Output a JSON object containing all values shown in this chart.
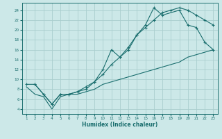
{
  "xlabel": "Humidex (Indice chaleur)",
  "background_color": "#cce8e8",
  "grid_color": "#aacece",
  "line_color": "#1a6e6e",
  "xlim": [
    0.5,
    23.5
  ],
  "ylim": [
    3,
    25.5
  ],
  "xticks": [
    1,
    2,
    3,
    4,
    5,
    6,
    7,
    8,
    9,
    10,
    11,
    12,
    13,
    14,
    15,
    16,
    17,
    18,
    19,
    20,
    21,
    22,
    23
  ],
  "yticks": [
    4,
    6,
    8,
    10,
    12,
    14,
    16,
    18,
    20,
    22,
    24
  ],
  "line1_x": [
    2,
    3,
    4,
    5,
    6,
    7,
    8,
    9,
    10,
    11,
    12,
    13,
    14,
    15,
    16,
    17,
    19,
    20,
    21,
    22,
    23
  ],
  "line1_y": [
    9,
    7,
    5,
    7,
    7,
    7.5,
    8,
    9.5,
    12,
    16,
    14.5,
    16.5,
    19,
    21,
    24.5,
    23,
    24,
    21,
    20.5,
    17.5,
    16
  ],
  "line2_x": [
    1,
    2,
    3,
    4,
    5,
    6,
    7,
    8,
    9,
    10,
    11,
    12,
    13,
    14,
    15,
    16,
    17,
    18,
    19,
    20,
    21,
    22,
    23
  ],
  "line2_y": [
    9,
    9,
    7,
    5,
    7,
    7,
    7.5,
    8.5,
    9.5,
    11,
    13,
    14.5,
    16,
    19,
    20.5,
    22,
    23.5,
    24,
    24.5,
    24,
    23,
    22,
    21
  ],
  "line3_x": [
    1,
    2,
    3,
    4,
    5,
    6,
    7,
    8,
    9,
    10,
    11,
    12,
    13,
    14,
    15,
    16,
    17,
    18,
    19,
    20,
    21,
    22,
    23
  ],
  "line3_y": [
    8.5,
    7,
    6.5,
    4,
    6.5,
    7,
    7,
    7.5,
    8,
    9,
    9.5,
    10,
    10.5,
    11,
    11.5,
    12,
    12.5,
    13,
    13.5,
    14.5,
    15,
    15.5,
    16
  ]
}
